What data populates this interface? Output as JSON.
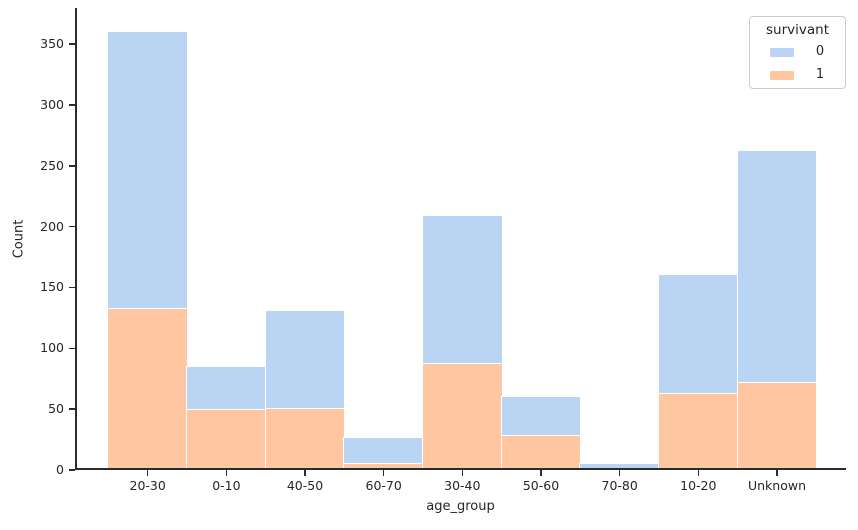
{
  "figure": {
    "background": "#ffffff",
    "text_color": "#262626",
    "axis_color": "#2b2b2b"
  },
  "chart_data": {
    "type": "bar",
    "subtype": "stacked-histogram",
    "title": "",
    "xlabel": "age_group",
    "ylabel": "Count",
    "categories": [
      "20-30",
      "0-10",
      "40-50",
      "60-70",
      "30-40",
      "50-60",
      "70-80",
      "10-20",
      "Unknown"
    ],
    "series": [
      {
        "name": "0",
        "color": "#b9d5f3",
        "values": [
          227,
          35,
          80,
          20,
          121,
          31,
          4,
          97,
          190
        ]
      },
      {
        "name": "1",
        "color": "#ffc7a1",
        "values": [
          133,
          50,
          51,
          6,
          88,
          29,
          1,
          63,
          72
        ]
      }
    ],
    "stack_order_bottom_to_top": [
      "1",
      "0"
    ],
    "totals": [
      360,
      85,
      131,
      26,
      209,
      60,
      5,
      160,
      262
    ],
    "y_ticks": [
      0,
      50,
      100,
      150,
      200,
      250,
      300,
      350
    ],
    "ylim": [
      0,
      380
    ],
    "grid": false,
    "bar_edge_color": "#ffffff",
    "legend": {
      "title": "survivant",
      "position": "upper right",
      "entries": [
        {
          "label": "0",
          "series": "0"
        },
        {
          "label": "1",
          "series": "1"
        }
      ]
    }
  }
}
